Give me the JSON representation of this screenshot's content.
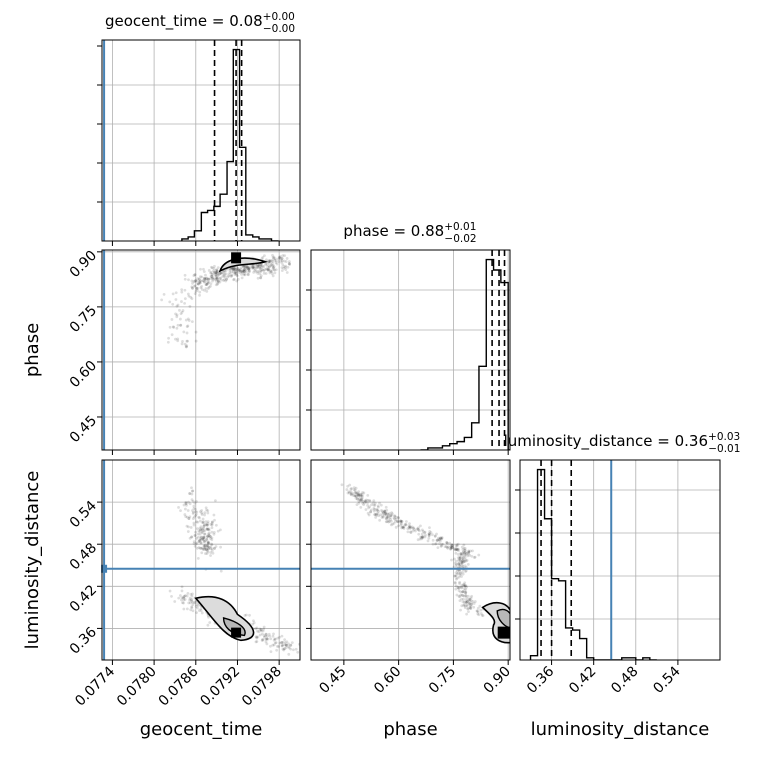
{
  "figure": {
    "colors": {
      "truth": "#4682b4",
      "hist": "#000000",
      "grid": "#b0b0b0",
      "points": "#000000"
    }
  },
  "chart_data": [
    {
      "type": "histogram",
      "parameter": "geocent_time",
      "title": {
        "base": "geocent_time = 0.08",
        "plus": "+0.00",
        "minus": "−0.00"
      },
      "xlim": [
        0.07725,
        0.0801
      ],
      "grid": true,
      "truth": 0.07728,
      "quantiles": [
        0.07887,
        0.07918,
        0.07926
      ],
      "bins": [
        0.0784,
        0.07849,
        0.07858,
        0.07868,
        0.07877,
        0.07886,
        0.07895,
        0.07905,
        0.07914,
        0.07923,
        0.07932,
        0.07942,
        0.07951,
        0.0796,
        0.07969,
        0.07979
      ],
      "counts": [
        1,
        2,
        5,
        14,
        15,
        17,
        23,
        39,
        94,
        46,
        3,
        2,
        1,
        1,
        0
      ]
    },
    {
      "type": "histogram",
      "parameter": "phase",
      "title": {
        "base": "phase = 0.88",
        "plus": "+0.01",
        "minus": "−0.02"
      },
      "xlim": [
        0.36,
        0.905
      ],
      "grid": true,
      "quantiles": [
        0.856,
        0.875,
        0.89
      ],
      "bins": [
        0.66,
        0.68,
        0.7,
        0.72,
        0.74,
        0.76,
        0.78,
        0.8,
        0.82,
        0.84,
        0.86,
        0.88,
        0.9,
        0.92
      ],
      "counts": [
        0,
        1,
        1,
        2,
        3,
        4,
        6,
        13,
        40,
        91,
        86,
        80,
        0
      ]
    },
    {
      "type": "histogram",
      "parameter": "luminosity_distance",
      "title": {
        "base": "luminosity_distance = 0.36",
        "plus": "+0.03",
        "minus": "−0.01"
      },
      "xlim": [
        0.315,
        0.6
      ],
      "xticks": [
        "0.36",
        "0.42",
        "0.48",
        "0.54"
      ],
      "xlabel": "luminosity_distance",
      "grid": true,
      "truth": 0.445,
      "quantiles": [
        0.345,
        0.36,
        0.388
      ],
      "bins": [
        0.33,
        0.34,
        0.35,
        0.36,
        0.37,
        0.38,
        0.39,
        0.4,
        0.41,
        0.42,
        0.43,
        0.44,
        0.45,
        0.46,
        0.47,
        0.48,
        0.49,
        0.5,
        0.51
      ],
      "counts": [
        2,
        89,
        66,
        38,
        37,
        15,
        14,
        10,
        1,
        0,
        0,
        0,
        0,
        1,
        1,
        0,
        1,
        0
      ]
    },
    {
      "type": "scatter",
      "panel": "phase vs geocent_time",
      "x_parameter": "geocent_time",
      "y_parameter": "phase",
      "xlim": [
        0.07725,
        0.0801
      ],
      "ylim": [
        0.36,
        0.905
      ],
      "yticks": [
        "0.45",
        "0.60",
        "0.75",
        "0.90"
      ],
      "ylabel": "phase",
      "grid": true,
      "truth": {
        "x": 0.07728
      }
    },
    {
      "type": "scatter",
      "panel": "luminosity_distance vs geocent_time",
      "x_parameter": "geocent_time",
      "y_parameter": "luminosity_distance",
      "xlim": [
        0.07725,
        0.0801
      ],
      "ylim": [
        0.315,
        0.6
      ],
      "xticks": [
        "0.0774",
        "0.0780",
        "0.0786",
        "0.0792",
        "0.0798"
      ],
      "yticks": [
        "0.36",
        "0.42",
        "0.48",
        "0.54"
      ],
      "xlabel": "geocent_time",
      "ylabel": "luminosity_distance",
      "grid": true,
      "truth": {
        "x": 0.07728,
        "y": 0.445
      }
    },
    {
      "type": "scatter",
      "panel": "luminosity_distance vs phase",
      "x_parameter": "phase",
      "y_parameter": "luminosity_distance",
      "xlim": [
        0.36,
        0.905
      ],
      "ylim": [
        0.315,
        0.6
      ],
      "xticks": [
        "0.45",
        "0.60",
        "0.75",
        "0.90"
      ],
      "xlabel": "phase",
      "grid": true,
      "truth": {
        "y": 0.445
      }
    }
  ]
}
